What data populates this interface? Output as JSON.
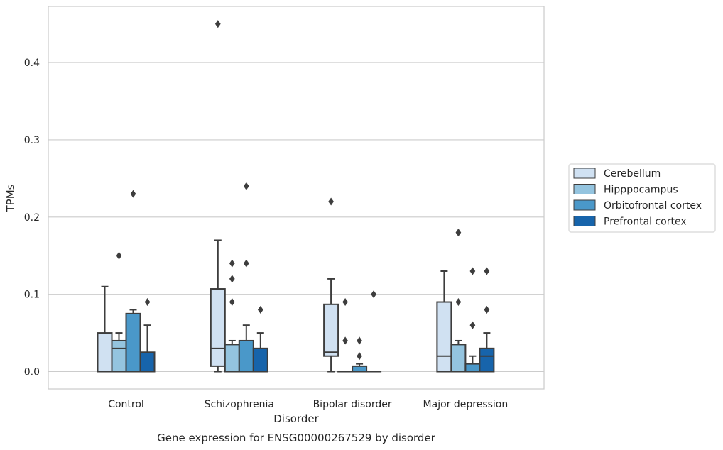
{
  "caption": "Gene expression for ENSG00000267529 by disorder",
  "chart_data": {
    "type": "box",
    "xlabel": "Disorder",
    "ylabel": "TPMs",
    "ylim": [
      -0.022,
      0.475
    ],
    "yticks": [
      "0.0",
      "0.1",
      "0.2",
      "0.3",
      "0.4"
    ],
    "ytick_values": [
      0.0,
      0.1,
      0.2,
      0.3,
      0.4
    ],
    "grid": true,
    "legend_position": "right, outside plot",
    "categories": [
      "Control",
      "Schizophrenia",
      "Bipolar disorder",
      "Major depression"
    ],
    "series": [
      {
        "name": "Cerebellum",
        "color": "#d0e1f2",
        "boxes": [
          {
            "min": 0.0,
            "q1": 0.0,
            "median": 0.0,
            "q3": 0.05,
            "max": 0.11,
            "outliers": []
          },
          {
            "min": 0.0,
            "q1": 0.007,
            "median": 0.03,
            "q3": 0.107,
            "max": 0.17,
            "outliers": [
              0.45
            ]
          },
          {
            "min": 0.0,
            "q1": 0.02,
            "median": 0.025,
            "q3": 0.087,
            "max": 0.12,
            "outliers": [
              0.22
            ]
          },
          {
            "min": 0.0,
            "q1": 0.0,
            "median": 0.02,
            "q3": 0.09,
            "max": 0.13,
            "outliers": []
          }
        ]
      },
      {
        "name": "Hipppocampus",
        "color": "#94c4df",
        "boxes": [
          {
            "min": 0.0,
            "q1": 0.0,
            "median": 0.03,
            "q3": 0.04,
            "max": 0.05,
            "outliers": [
              0.15
            ]
          },
          {
            "min": 0.0,
            "q1": 0.0,
            "median": 0.0,
            "q3": 0.035,
            "max": 0.04,
            "outliers": [
              0.09,
              0.12,
              0.14
            ]
          },
          {
            "min": 0.0,
            "q1": 0.0,
            "median": 0.0,
            "q3": 0.0,
            "max": 0.0,
            "outliers": [
              0.04,
              0.09
            ]
          },
          {
            "min": 0.0,
            "q1": 0.0,
            "median": 0.0,
            "q3": 0.035,
            "max": 0.04,
            "outliers": [
              0.09,
              0.18
            ]
          }
        ]
      },
      {
        "name": "Orbitofrontal cortex",
        "color": "#4a98c9",
        "boxes": [
          {
            "min": 0.0,
            "q1": 0.0,
            "median": 0.0,
            "q3": 0.075,
            "max": 0.08,
            "outliers": [
              0.23
            ]
          },
          {
            "min": 0.0,
            "q1": 0.0,
            "median": 0.0,
            "q3": 0.04,
            "max": 0.06,
            "outliers": [
              0.14,
              0.24
            ]
          },
          {
            "min": 0.0,
            "q1": 0.0,
            "median": 0.0,
            "q3": 0.007,
            "max": 0.01,
            "outliers": [
              0.02,
              0.04
            ]
          },
          {
            "min": 0.0,
            "q1": 0.0,
            "median": 0.0,
            "q3": 0.01,
            "max": 0.02,
            "outliers": [
              0.06,
              0.13
            ]
          }
        ]
      },
      {
        "name": "Prefrontal cortex",
        "color": "#1764ab",
        "boxes": [
          {
            "min": 0.0,
            "q1": 0.0,
            "median": 0.0,
            "q3": 0.025,
            "max": 0.06,
            "outliers": [
              0.09
            ]
          },
          {
            "min": 0.0,
            "q1": 0.0,
            "median": 0.0,
            "q3": 0.03,
            "max": 0.05,
            "outliers": [
              0.08
            ]
          },
          {
            "min": 0.0,
            "q1": 0.0,
            "median": 0.0,
            "q3": 0.0,
            "max": 0.0,
            "outliers": [
              0.1
            ]
          },
          {
            "min": 0.0,
            "q1": 0.0,
            "median": 0.02,
            "q3": 0.03,
            "max": 0.05,
            "outliers": [
              0.08,
              0.13
            ]
          }
        ]
      }
    ]
  }
}
